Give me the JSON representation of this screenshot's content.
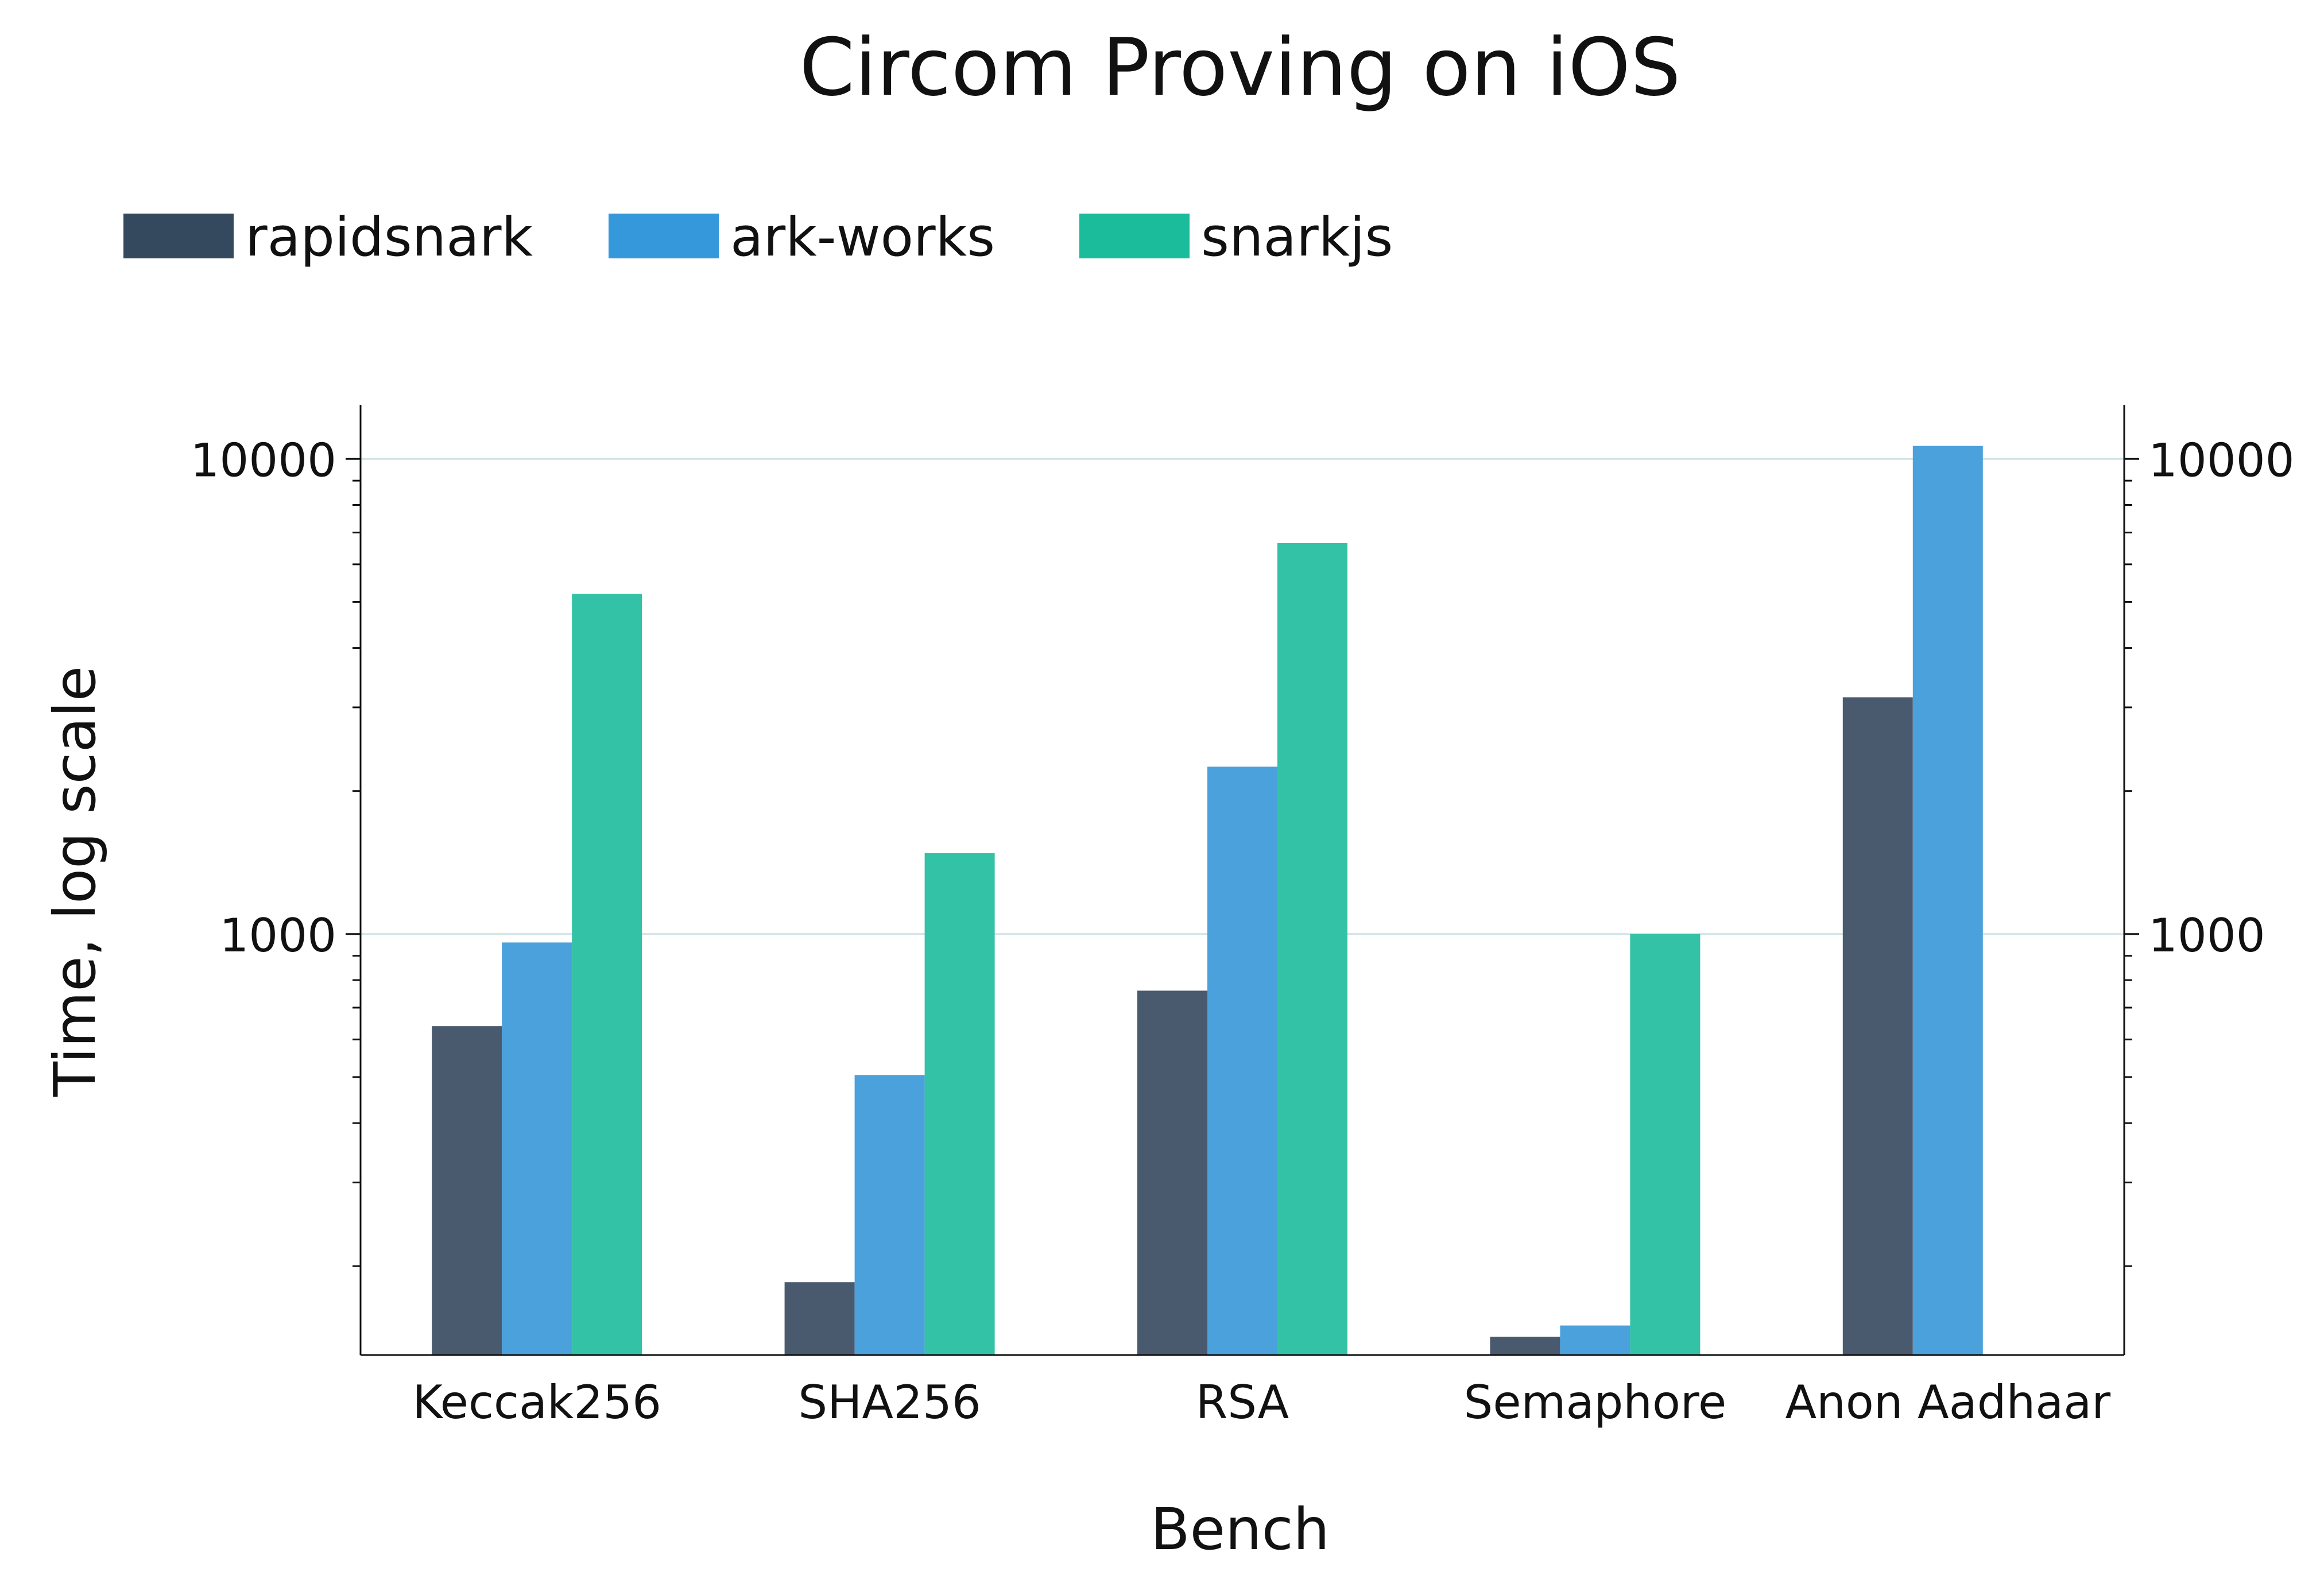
{
  "chart_data": {
    "type": "bar",
    "title": "Circom Proving on iOS",
    "xlabel": "Bench",
    "ylabel": "Time, log scale",
    "yscale": "log",
    "ylim": [
      130,
      13000
    ],
    "yticks": [
      1000,
      10000
    ],
    "ytick_labels": [
      "1000",
      "10000"
    ],
    "grid": "horizontal major",
    "legend_position": "top-left",
    "categories": [
      "Keccak256",
      "SHA256",
      "RSA",
      "Semaphore",
      "Anon Aadhaar"
    ],
    "series": [
      {
        "name": "rapidsnark",
        "color": "#4a5a6e",
        "legend_color": "#34495e",
        "values": [
          640,
          185,
          760,
          142,
          3150
        ]
      },
      {
        "name": "ark-works",
        "color": "#4ba1dc",
        "legend_color": "#3498db",
        "values": [
          960,
          505,
          2250,
          150,
          10650
        ]
      },
      {
        "name": "snarkjs",
        "color": "#33c2a5",
        "legend_color": "#1abc9c",
        "values": [
          5200,
          1480,
          6650,
          1000,
          null
        ]
      }
    ]
  }
}
